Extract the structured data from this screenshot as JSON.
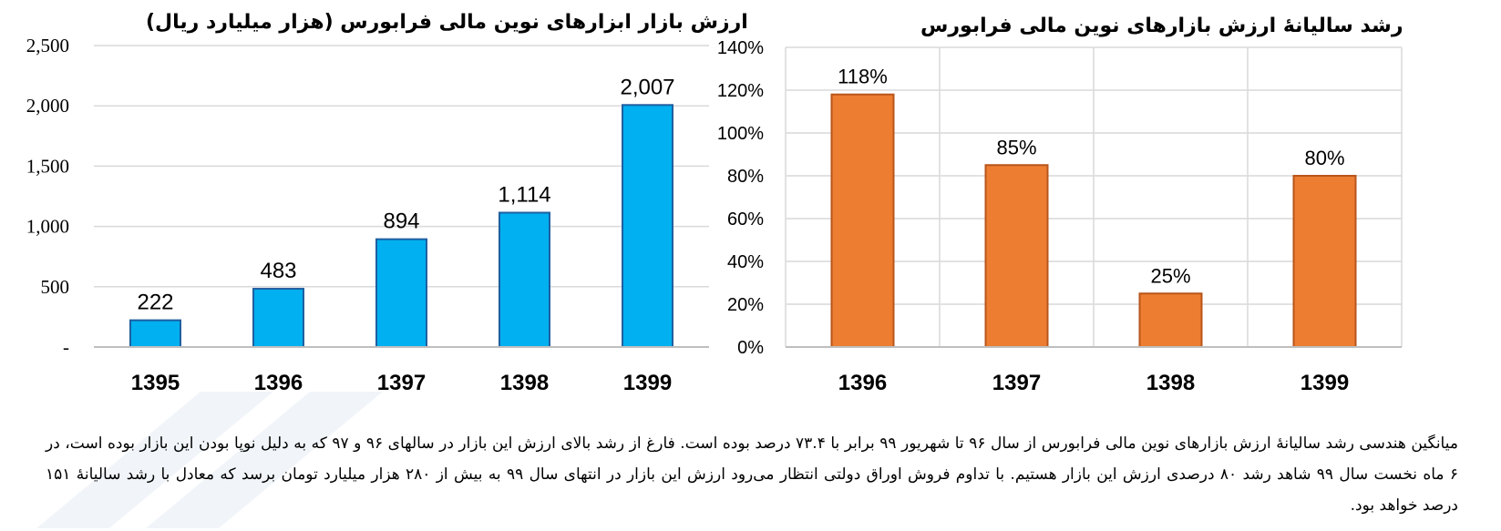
{
  "charts_colors": {
    "left_bar": "#00B0F0",
    "left_stroke": "#1F5FA0",
    "right_bar": "#ED7D31",
    "right_stroke": "#B8551A",
    "grid": "#D9D9D9"
  },
  "chart_data": [
    {
      "type": "bar",
      "title": "ارزش بازار ابزارهای نوین مالی فرابورس (هزار میلیارد ریال)",
      "categories": [
        "1395",
        "1396",
        "1397",
        "1398",
        "1399"
      ],
      "values": [
        222,
        483,
        894,
        1114,
        2007
      ],
      "value_labels": [
        "222",
        "483",
        "894",
        "1,114",
        "2,007"
      ],
      "ylim": [
        0,
        2500
      ],
      "yticks": [
        0,
        500,
        1000,
        1500,
        2000,
        2500
      ],
      "ytick_labels": [
        "-",
        "500",
        "1,000",
        "1,500",
        "2,000",
        "2,500"
      ],
      "grid": true
    },
    {
      "type": "bar",
      "title": "رشد سالیانۀ ارزش بازارهای نوین مالی فرابورس",
      "categories": [
        "1396",
        "1397",
        "1398",
        "1399"
      ],
      "values": [
        118,
        85,
        25,
        80
      ],
      "value_labels": [
        "118%",
        "85%",
        "25%",
        "80%"
      ],
      "ylim": [
        0,
        140
      ],
      "yticks": [
        0,
        20,
        40,
        60,
        80,
        100,
        120,
        140
      ],
      "ytick_labels": [
        "0%",
        "20%",
        "40%",
        "60%",
        "80%",
        "100%",
        "120%",
        "140%"
      ],
      "grid": true
    }
  ],
  "caption": "میانگین هندسی رشد سالیانۀ ارزش بازارهای نوین مالی فرابورس از سال ۹۶ تا شهریور ۹۹ برابر با ۷۳.۴ درصد بوده است. فارغ از رشد بالای ارزش این بازار در سالهای ۹۶ و ۹۷ که به دلیل نوپا بودن این بازار بوده است، در ۶ ماه نخست سال ۹۹ شاهد رشد ۸۰ درصدی ارزش این بازار هستیم. با تداوم فروش اوراق دولتی انتظار می‌رود ارزش این بازار در انتهای سال ۹۹ به بیش از ۲۸۰ هزار میلیارد تومان برسد که معادل با رشد سالیانۀ ۱۵۱ درصد خواهد بود."
}
